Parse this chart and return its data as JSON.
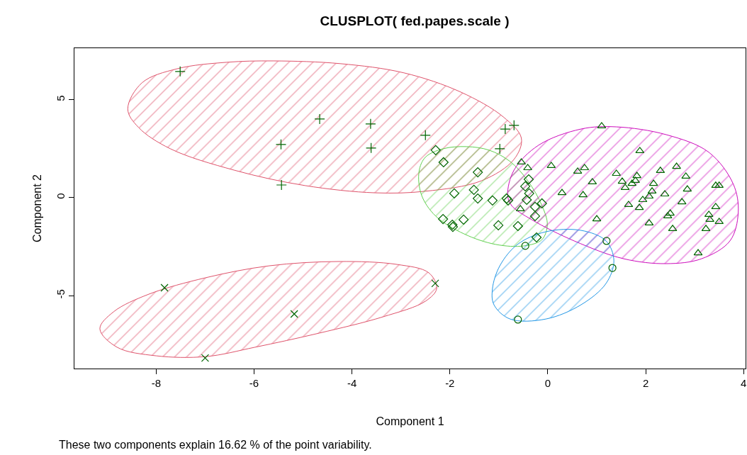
{
  "chart_data": {
    "type": "scatter",
    "title": "CLUSPLOT( fed.papes.scale )",
    "xlabel": "Component 1",
    "ylabel": "Component 2",
    "annotations": [
      "These two components explain 16.62 % of the point variability."
    ],
    "xlim": [
      -9.67,
      4.04
    ],
    "ylim": [
      -8.73,
      7.64
    ],
    "xticks": [
      -8,
      -6,
      -4,
      -2,
      0,
      2,
      4
    ],
    "yticks": [
      -5,
      0,
      5
    ],
    "series": [
      {
        "type": "area",
        "color": "#df536b",
        "x": [
          -8.58,
          -8.29,
          -7.57,
          -6.56,
          -5.6,
          -4.24,
          -2.94,
          -1.78,
          -0.91,
          -0.54,
          -0.69,
          -1.35,
          -2.5,
          -3.53,
          -4.96,
          -6.41,
          -7.71,
          -8.36
        ],
        "values": [
          4.53,
          5.87,
          6.59,
          6.92,
          6.99,
          6.85,
          6.38,
          5.4,
          4.13,
          3.04,
          1.96,
          0.87,
          0.33,
          0.25,
          0.62,
          1.41,
          2.5,
          3.59
        ]
      },
      {
        "type": "area",
        "color": "#df536b",
        "x": [
          -9.15,
          -8.87,
          -8.15,
          -6.99,
          -5.69,
          -4.27,
          -3.08,
          -2.43,
          -2.27,
          -2.5,
          -3.37,
          -4.67,
          -5.98,
          -6.99,
          -8.0,
          -8.8
        ],
        "values": [
          -6.7,
          -5.83,
          -4.93,
          -4.09,
          -3.48,
          -3.26,
          -3.41,
          -3.84,
          -4.64,
          -5.29,
          -6.09,
          -6.92,
          -7.64,
          -8.12,
          -8.08,
          -7.64
        ]
      },
      {
        "type": "area",
        "color": "#61d04f",
        "x": [
          -2.63,
          -2.5,
          -2.14,
          -1.66,
          -1.2,
          -0.77,
          -0.41,
          -0.12,
          -0.01,
          -0.12,
          -0.48,
          -1.06,
          -1.71,
          -2.29,
          -2.58
        ],
        "values": [
          1.34,
          2.07,
          2.5,
          2.61,
          2.43,
          1.85,
          0.87,
          -0.4,
          -1.38,
          -2.14,
          -2.46,
          -2.39,
          -1.85,
          -0.94,
          0.14
        ]
      },
      {
        "type": "area",
        "color": "#cd0bbc",
        "x": [
          -0.82,
          -0.69,
          -0.19,
          0.68,
          1.4,
          2.42,
          3.29,
          3.79,
          3.89,
          3.72,
          3.14,
          2.42,
          1.55,
          0.54,
          -0.33,
          -0.74
        ],
        "values": [
          0.14,
          1.41,
          2.68,
          3.51,
          3.62,
          3.22,
          2.32,
          0.69,
          -0.76,
          -2.21,
          -3.12,
          -3.37,
          -3.12,
          -2.21,
          -1.12,
          -0.4
        ]
      },
      {
        "type": "area",
        "color": "#2297e6",
        "x": [
          -1.13,
          -0.98,
          -0.62,
          -0.04,
          0.68,
          1.19,
          1.35,
          1.19,
          0.68,
          -0.04,
          -0.77,
          -1.1
        ],
        "values": [
          -4.64,
          -3.48,
          -2.39,
          -1.74,
          -1.67,
          -2.21,
          -3.22,
          -4.38,
          -5.47,
          -6.2,
          -6.2,
          -5.47
        ]
      },
      {
        "marker": "cross",
        "color": "#006400",
        "x": [
          -7.51,
          -4.66,
          -3.62,
          -5.45,
          -3.61,
          -2.5,
          -5.44,
          -0.87,
          -0.69,
          -0.98
        ],
        "values": [
          6.45,
          4.02,
          3.77,
          2.72,
          2.54,
          3.19,
          0.65,
          3.51,
          3.7,
          2.5
        ]
      },
      {
        "marker": "x",
        "color": "#006400",
        "x": [
          -7.83,
          -7.0,
          -5.18,
          -2.3
        ],
        "values": [
          -4.6,
          -8.19,
          -5.94,
          -4.38
        ]
      },
      {
        "marker": "circle",
        "color": "#006400",
        "x": [
          -0.46,
          1.2,
          1.32,
          -0.61
        ],
        "values": [
          -2.46,
          -2.21,
          -3.59,
          -6.23
        ]
      },
      {
        "marker": "diamond",
        "color": "#006400",
        "x": [
          -2.29,
          -2.13,
          -1.43,
          -1.91,
          -1.51,
          -1.43,
          -1.13,
          -0.84,
          -0.81,
          -0.39,
          -0.46,
          -0.38,
          -0.43,
          -0.26,
          -0.12,
          -0.26,
          -2.14,
          -1.95,
          -1.94,
          -1.72,
          -1.01,
          -0.61,
          -0.23
        ],
        "values": [
          2.43,
          1.81,
          1.3,
          0.22,
          0.4,
          -0.04,
          -0.14,
          -0.04,
          -0.14,
          0.94,
          0.58,
          0.22,
          -0.11,
          -0.47,
          -0.29,
          -0.94,
          -1.09,
          -1.38,
          -1.49,
          -1.12,
          -1.41,
          -1.45,
          -2.03
        ]
      },
      {
        "marker": "triangle",
        "color": "#006400",
        "x": [
          -0.54,
          -0.41,
          0.07,
          0.29,
          -0.56,
          1.1,
          1.88,
          0.61,
          0.75,
          1.4,
          2.3,
          2.63,
          2.82,
          0.91,
          1.52,
          1.82,
          1.79,
          1.72,
          1.58,
          2.16,
          2.13,
          2.07,
          1.94,
          1.87,
          1.65,
          2.39,
          2.85,
          3.43,
          3.5,
          2.74,
          0.72,
          3.43,
          2.5,
          2.45,
          3.29,
          3.31,
          3.5,
          2.07,
          2.55,
          3.23,
          1.0,
          3.07
        ],
        "values": [
          1.81,
          1.52,
          1.63,
          0.25,
          -0.58,
          3.66,
          2.39,
          1.34,
          1.52,
          1.23,
          1.38,
          1.59,
          1.09,
          0.8,
          0.83,
          1.12,
          0.87,
          0.72,
          0.51,
          0.72,
          0.33,
          0.07,
          -0.11,
          -0.51,
          -0.36,
          0.18,
          0.43,
          0.62,
          0.62,
          -0.22,
          0.14,
          -0.47,
          -0.8,
          -0.94,
          -0.87,
          -1.12,
          -1.23,
          -1.3,
          -1.59,
          -1.59,
          -1.09,
          -2.83
        ]
      }
    ]
  }
}
